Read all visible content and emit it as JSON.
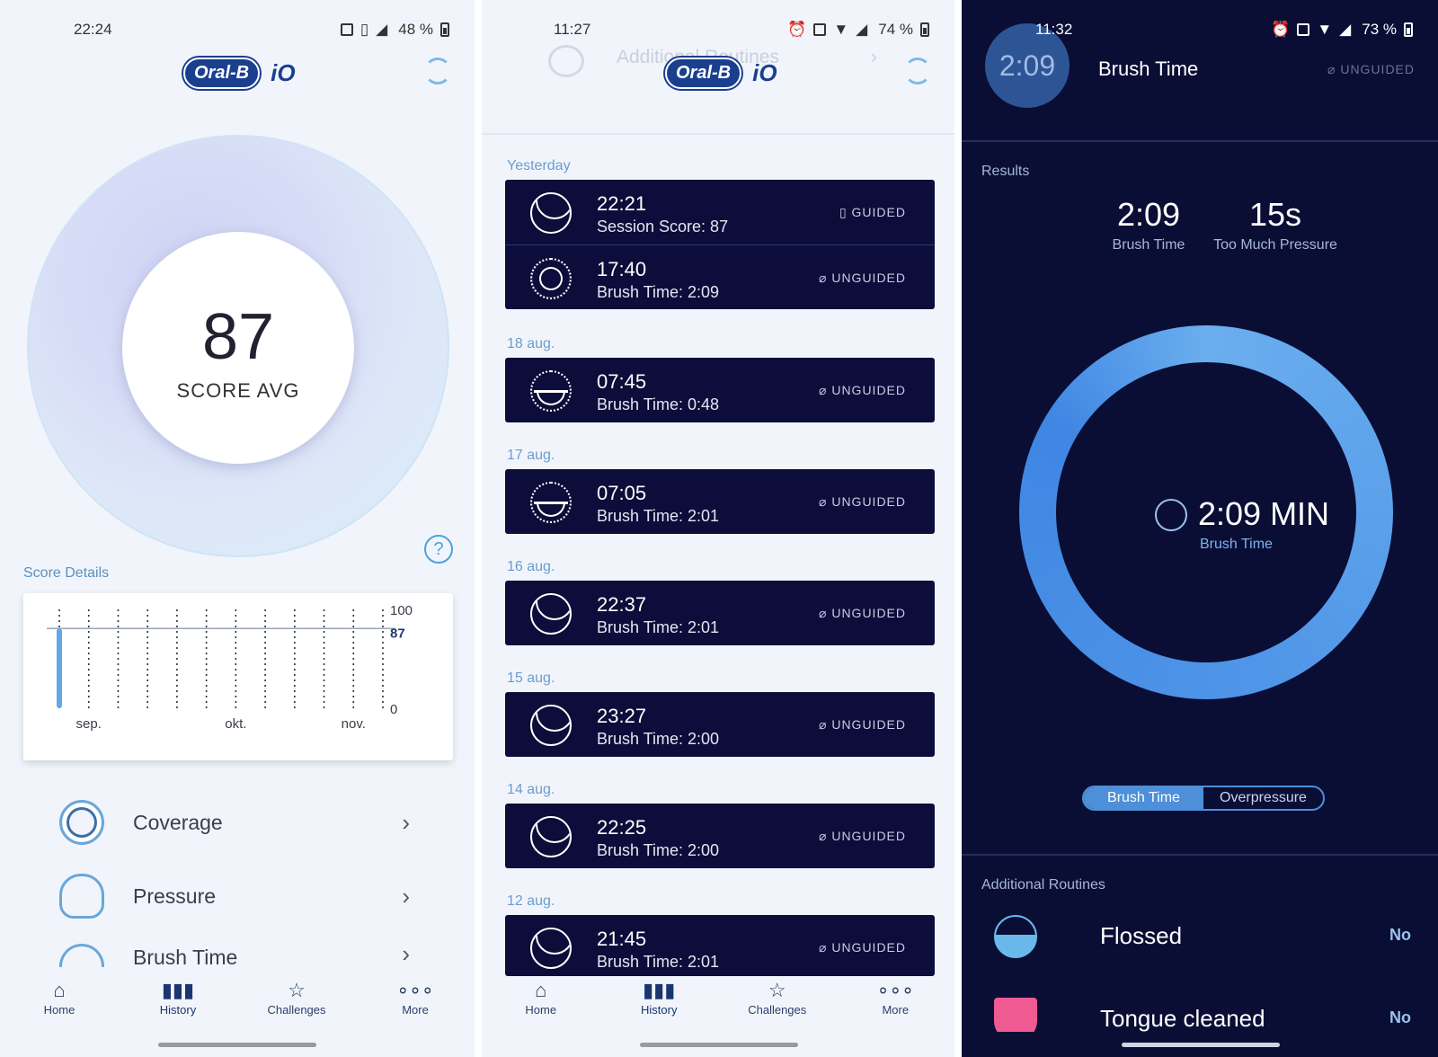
{
  "screen1": {
    "status": {
      "time": "22:24",
      "battery": "48 %"
    },
    "logo": {
      "brand": "Oral-B",
      "product": "iO"
    },
    "score": {
      "value": "87",
      "label": "SCORE AVG"
    },
    "help_icon": "question-mark-icon",
    "score_details_title": "Score Details",
    "chart_data": {
      "type": "bar",
      "title": "",
      "y_ticks": [
        "100",
        "87",
        "0"
      ],
      "ylim": [
        0,
        100
      ],
      "x_labels": [
        "sep.",
        "okt.",
        "nov."
      ],
      "values": [
        87,
        null,
        null,
        null,
        null,
        null,
        null,
        null,
        null,
        null,
        null,
        null
      ],
      "reference_line": 87,
      "bar_color": "#64a6e8"
    },
    "menu": [
      {
        "label": "Coverage",
        "icon": "coverage-ring-icon"
      },
      {
        "label": "Pressure",
        "icon": "tooth-icon"
      },
      {
        "label": "Brush Time",
        "icon": "gauge-icon"
      }
    ]
  },
  "screen2": {
    "status": {
      "time": "11:27",
      "battery": "74 %"
    },
    "ghost_title": "Additional Routines",
    "groups": [
      {
        "date": "Yesterday",
        "entries": [
          {
            "time": "22:21",
            "sub": "Session Score: 87",
            "tag": "GUIDED",
            "icon": "moon-icon"
          },
          {
            "time": "17:40",
            "sub": "Brush Time: 2:09",
            "tag": "UNGUIDED",
            "icon": "sun-icon"
          }
        ]
      },
      {
        "date": "18 aug.",
        "entries": [
          {
            "time": "07:45",
            "sub": "Brush Time: 0:48",
            "tag": "UNGUIDED",
            "icon": "sunrise-icon"
          }
        ]
      },
      {
        "date": "17 aug.",
        "entries": [
          {
            "time": "07:05",
            "sub": "Brush Time: 2:01",
            "tag": "UNGUIDED",
            "icon": "sunrise-icon"
          }
        ]
      },
      {
        "date": "16 aug.",
        "entries": [
          {
            "time": "22:37",
            "sub": "Brush Time: 2:01",
            "tag": "UNGUIDED",
            "icon": "moon-icon"
          }
        ]
      },
      {
        "date": "15 aug.",
        "entries": [
          {
            "time": "23:27",
            "sub": "Brush Time: 2:00",
            "tag": "UNGUIDED",
            "icon": "moon-icon"
          }
        ]
      },
      {
        "date": "14 aug.",
        "entries": [
          {
            "time": "22:25",
            "sub": "Brush Time: 2:00",
            "tag": "UNGUIDED",
            "icon": "moon-icon"
          }
        ]
      },
      {
        "date": "12 aug.",
        "entries": [
          {
            "time": "21:45",
            "sub": "Brush Time: 2:01",
            "tag": "UNGUIDED",
            "icon": "moon-icon"
          }
        ]
      }
    ]
  },
  "screen3": {
    "status": {
      "time": "11:32",
      "battery": "73 %"
    },
    "timer": "2:09",
    "title": "Brush Time",
    "tag": "UNGUIDED",
    "results_title": "Results",
    "stats": [
      {
        "value": "2:09",
        "label": "Brush Time"
      },
      {
        "value": "15s",
        "label": "Too Much Pressure"
      }
    ],
    "ring": {
      "value": "2:09 MIN",
      "label": "Brush Time",
      "fill_fraction": 1.0
    },
    "toggle": [
      "Brush Time",
      "Overpressure"
    ],
    "routines_title": "Additional Routines",
    "routines": [
      {
        "label": "Flossed",
        "value": "No",
        "icon": "floss-icon"
      },
      {
        "label": "Tongue cleaned",
        "value": "No",
        "icon": "tongue-icon"
      }
    ]
  },
  "nav": [
    {
      "label": "Home",
      "icon": "home-icon"
    },
    {
      "label": "History",
      "icon": "bar-chart-icon"
    },
    {
      "label": "Challenges",
      "icon": "star-icon"
    },
    {
      "label": "More",
      "icon": "more-dots-icon"
    }
  ]
}
